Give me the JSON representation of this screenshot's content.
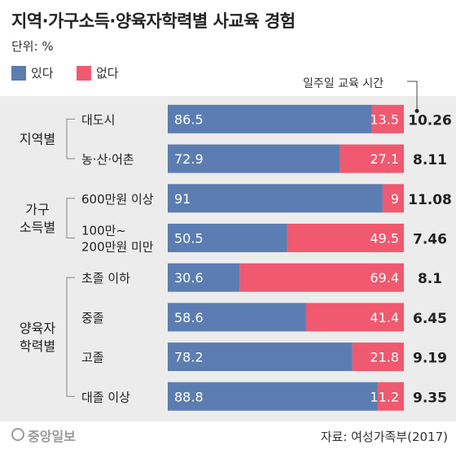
{
  "title": "지역·가구소득·양육자학력별 사교육 경험",
  "unit_label": "단위: %",
  "legend": [
    {
      "label": "있다",
      "color": "#5b7db1"
    },
    {
      "label": "없다",
      "color": "#f0596f"
    }
  ],
  "hours_title": "일주일 교육 시간",
  "groups": [
    {
      "label": [
        "지역별"
      ],
      "rows": [
        0,
        1
      ]
    },
    {
      "label": [
        "가구",
        "소득별"
      ],
      "rows": [
        2,
        3
      ]
    },
    {
      "label": [
        "양육자",
        "학력별"
      ],
      "rows": [
        4,
        5,
        6,
        7
      ]
    }
  ],
  "chart_data": {
    "type": "bar",
    "orientation": "horizontal",
    "stacked": true,
    "categories": [
      [
        "대도시"
      ],
      [
        "농·산·어촌"
      ],
      [
        "600만원 이상"
      ],
      [
        "100만~",
        "200만원 미만"
      ],
      [
        "초졸 이하"
      ],
      [
        "중졸"
      ],
      [
        "고졸"
      ],
      [
        "대졸 이상"
      ]
    ],
    "series": [
      {
        "name": "있다",
        "color": "#5b7db1",
        "values": [
          86.5,
          72.9,
          91,
          50.5,
          30.6,
          58.6,
          78.2,
          88.8
        ],
        "labels": [
          "86.5",
          "72.9",
          "91",
          "50.5",
          "30.6",
          "58.6",
          "78.2",
          "88.8"
        ]
      },
      {
        "name": "없다",
        "color": "#f0596f",
        "values": [
          13.5,
          27.1,
          9,
          49.5,
          69.4,
          41.4,
          21.8,
          11.2
        ],
        "labels": [
          "13.5",
          "27.1",
          "9",
          "49.5",
          "69.4",
          "41.4",
          "21.8",
          "11.2"
        ]
      }
    ],
    "hours": [
      "10.26",
      "8.11",
      "11.08",
      "7.46",
      "8.1",
      "6.45",
      "9.19",
      "9.35"
    ],
    "xlim": [
      0,
      100
    ]
  },
  "footer": {
    "logo": "중앙일보",
    "source": "자료: 여성가족부(2017)"
  }
}
